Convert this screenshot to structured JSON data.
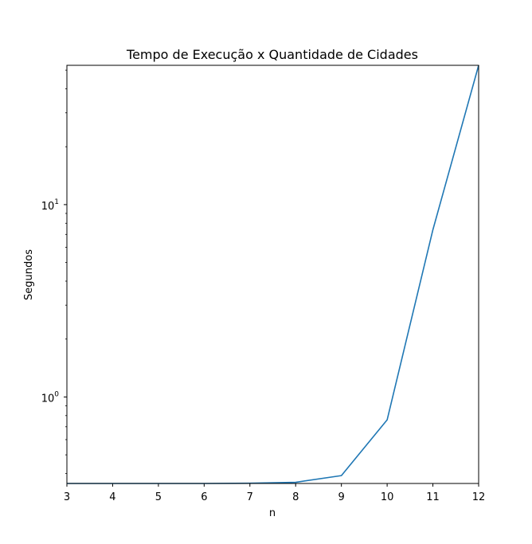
{
  "chart_data": {
    "type": "line",
    "title": "Tempo de Execução x Quantidade de Cidades",
    "xlabel": "n",
    "ylabel": "Segundos",
    "yscale": "log",
    "xlim": [
      3,
      12
    ],
    "ylim": [
      0.355,
      53
    ],
    "grid": false,
    "x_ticks": [
      3,
      4,
      5,
      6,
      7,
      8,
      9,
      10,
      11,
      12
    ],
    "y_ticks": [
      {
        "value": 1,
        "base": "10",
        "exp": "0"
      },
      {
        "value": 10,
        "base": "10",
        "exp": "1"
      }
    ],
    "series": [
      {
        "color": "#1f77b4",
        "x": [
          3,
          4,
          5,
          6,
          7,
          8,
          9,
          10,
          11,
          12
        ],
        "y": [
          0.355,
          0.355,
          0.355,
          0.355,
          0.356,
          0.36,
          0.39,
          0.76,
          7.4,
          53
        ]
      }
    ]
  }
}
